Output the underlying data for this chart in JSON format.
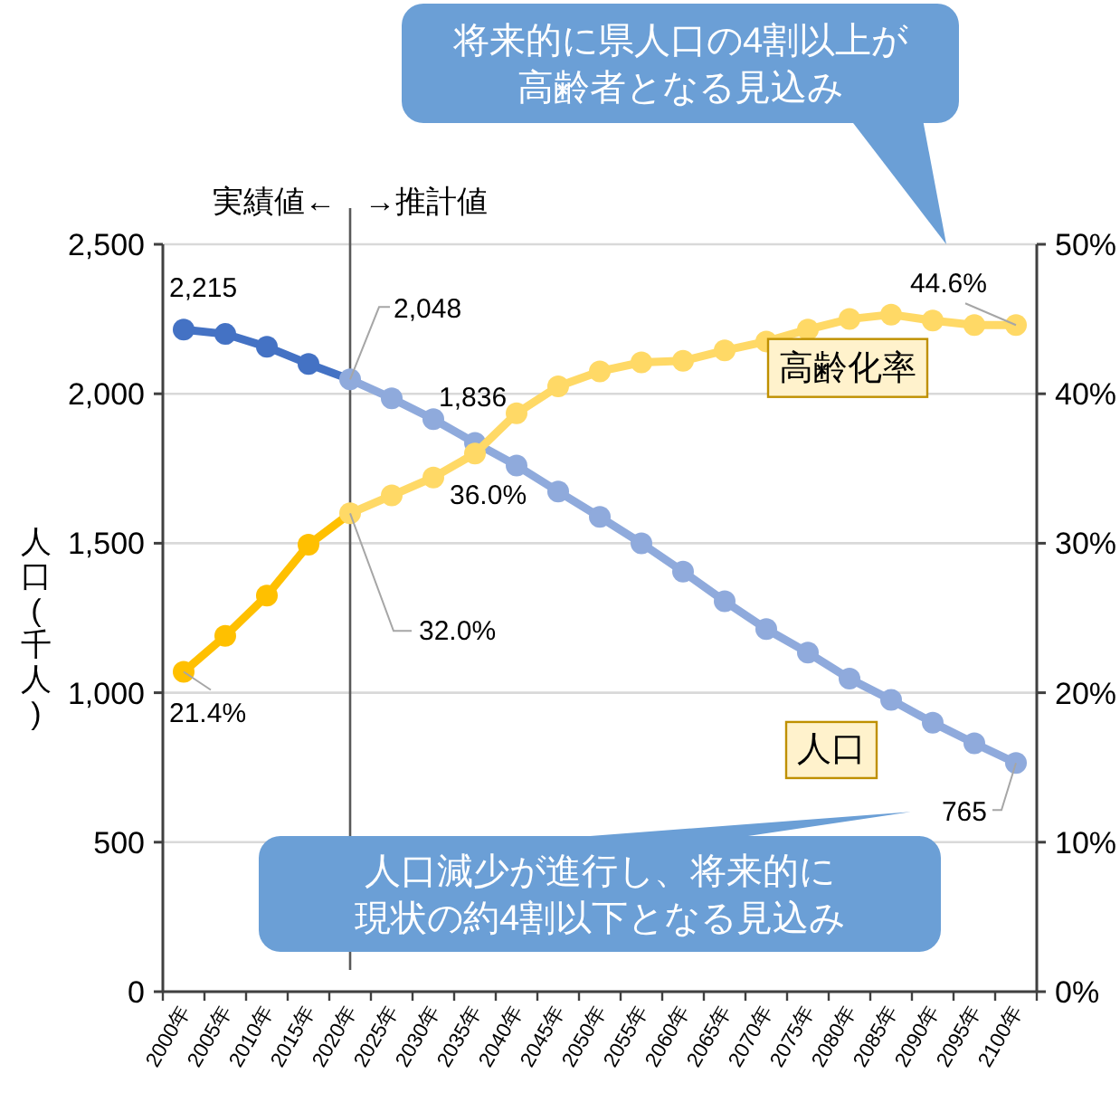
{
  "chart_data": {
    "type": "line",
    "categories": [
      "2000年",
      "2005年",
      "2010年",
      "2015年",
      "2020年",
      "2025年",
      "2030年",
      "2035年",
      "2040年",
      "2045年",
      "2050年",
      "2055年",
      "2060年",
      "2065年",
      "2070年",
      "2075年",
      "2080年",
      "2085年",
      "2090年",
      "2095年",
      "2100年"
    ],
    "ylabel": "人口(千人)",
    "ylim": [
      0,
      2500
    ],
    "yticks": [
      {
        "value": 0,
        "label": "0"
      },
      {
        "value": 500,
        "label": "500"
      },
      {
        "value": 1000,
        "label": "1,000"
      },
      {
        "value": 1500,
        "label": "1,500"
      },
      {
        "value": 2000,
        "label": "2,000"
      },
      {
        "value": 2500,
        "label": "2,500"
      }
    ],
    "y2lim": [
      0,
      50
    ],
    "y2ticks": [
      {
        "value": 0,
        "label": "0%"
      },
      {
        "value": 10,
        "label": "10%"
      },
      {
        "value": 20,
        "label": "20%"
      },
      {
        "value": 30,
        "label": "30%"
      },
      {
        "value": 40,
        "label": "40%"
      },
      {
        "value": 50,
        "label": "50%"
      }
    ],
    "grid": "y",
    "marker": "circle",
    "series": [
      {
        "name": "人口",
        "colors": [
          "#4472c4",
          "#4472c4",
          "#4472c4",
          "#4472c4",
          "#8faadc",
          "#8faadc",
          "#8faadc",
          "#8faadc",
          "#8faadc",
          "#8faadc",
          "#8faadc",
          "#8faadc",
          "#8faadc",
          "#8faadc",
          "#8faadc",
          "#8faadc",
          "#8faadc",
          "#8faadc",
          "#8faadc",
          "#8faadc",
          "#8faadc"
        ],
        "values": [
          2215,
          2200,
          2157,
          2100,
          2048,
          1985,
          1915,
          1836,
          1760,
          1673,
          1588,
          1500,
          1405,
          1306,
          1213,
          1134,
          1047,
          976,
          900,
          831,
          765
        ],
        "value_labels": [
          "2,215",
          null,
          null,
          null,
          "2,048",
          null,
          null,
          "1,836",
          null,
          null,
          null,
          null,
          null,
          null,
          null,
          null,
          null,
          null,
          null,
          null,
          "765"
        ]
      },
      {
        "name": "高齢化率",
        "axis": "y2",
        "colors": [
          "#ffc000",
          "#ffc000",
          "#ffc000",
          "#ffc000",
          "#ffd966",
          "#ffd966",
          "#ffd966",
          "#ffd966",
          "#ffd966",
          "#ffd966",
          "#ffd966",
          "#ffd966",
          "#ffd966",
          "#ffd966",
          "#ffd966",
          "#ffd966",
          "#ffd966",
          "#ffd966",
          "#ffd966",
          "#ffd966",
          "#ffd966"
        ],
        "values": [
          21.4,
          23.8,
          26.5,
          29.9,
          32.0,
          33.2,
          34.4,
          36.0,
          38.7,
          40.5,
          41.5,
          42.1,
          42.2,
          42.9,
          43.5,
          44.3,
          45.0,
          45.3,
          44.9,
          44.6,
          44.6
        ],
        "value_labels": [
          "21.4%",
          null,
          null,
          null,
          "32.0%",
          null,
          null,
          "36.0%",
          null,
          null,
          null,
          null,
          null,
          null,
          null,
          null,
          null,
          null,
          null,
          null,
          "44.6%"
        ]
      }
    ],
    "ref_lines": [
      {
        "axis": "x",
        "value": "2020年",
        "color": "#595959"
      }
    ],
    "annotations": [
      "実績値←",
      "→推計値",
      "将来的に県人口の4割以上が高齢者となる見込み",
      "人口減少が進行し、将来的に現状の約4割以下となる見込み"
    ]
  }
}
